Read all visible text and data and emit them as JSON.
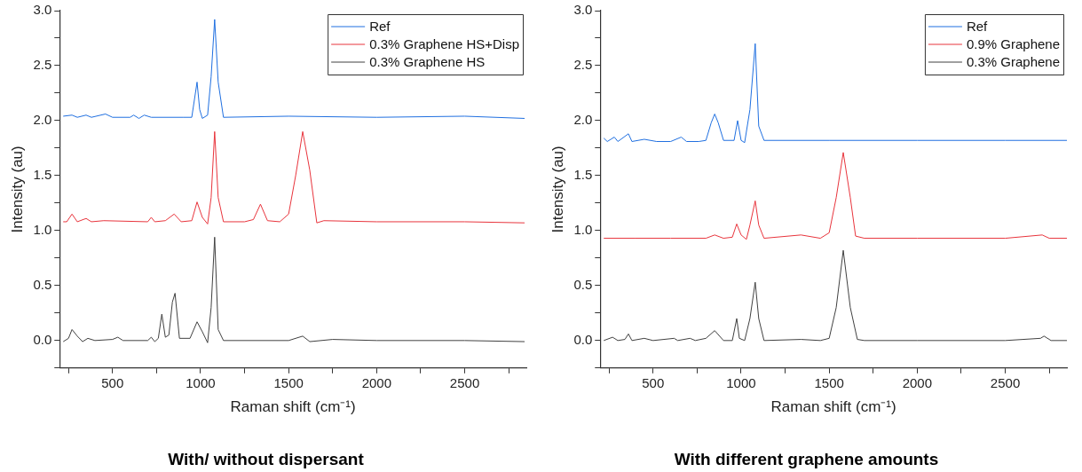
{
  "chart_data": [
    {
      "type": "line",
      "title": "With/ without dispersant",
      "xlabel": "Raman shift (cm⁻¹)",
      "ylabel": "Intensity (au)",
      "xlim": [
        200,
        2850
      ],
      "ylim": [
        -0.25,
        3.0
      ],
      "xticks": [
        {
          "value": 250,
          "label": null
        },
        500,
        {
          "value": 750,
          "label": null
        },
        1000,
        {
          "value": 1250,
          "label": null
        },
        1500,
        {
          "value": 1750,
          "label": null
        },
        2000,
        {
          "value": 2250,
          "label": null
        },
        2500,
        {
          "value": 2750,
          "label": null
        }
      ],
      "yticks": [
        {
          "value": -0.25,
          "label": null
        },
        {
          "value": 0,
          "label": "0.0"
        },
        {
          "value": 0.25,
          "label": null
        },
        0.5,
        {
          "value": 0.75,
          "label": null
        },
        {
          "value": 1,
          "label": "1.0"
        },
        {
          "value": 1.25,
          "label": null
        },
        1.5,
        {
          "value": 1.75,
          "label": null
        },
        {
          "value": 2,
          "label": "2.0"
        },
        {
          "value": 2.25,
          "label": null
        },
        2.5,
        {
          "value": 2.75,
          "label": null
        },
        {
          "value": 3,
          "label": "3.0"
        }
      ],
      "grid": false,
      "legend": "top right",
      "marker": "none",
      "line_style": "solid",
      "series": [
        {
          "name": "Ref",
          "color": "#1f6fe0",
          "x": [
            220,
            270,
            300,
            350,
            380,
            460,
            500,
            600,
            620,
            650,
            680,
            720,
            900,
            950,
            980,
            995,
            1010,
            1040,
            1060,
            1080,
            1100,
            1130,
            1500,
            2000,
            2500,
            2840
          ],
          "values": [
            2.04,
            2.05,
            2.03,
            2.05,
            2.03,
            2.06,
            2.03,
            2.03,
            2.05,
            2.02,
            2.05,
            2.03,
            2.03,
            2.03,
            2.35,
            2.1,
            2.02,
            2.05,
            2.4,
            2.92,
            2.35,
            2.03,
            2.04,
            2.03,
            2.04,
            2.02
          ]
        },
        {
          "name": "0.3% Graphene HS+Disp",
          "color": "#e8343c",
          "x": [
            220,
            240,
            270,
            300,
            350,
            380,
            450,
            700,
            720,
            740,
            800,
            850,
            890,
            950,
            980,
            1010,
            1040,
            1060,
            1080,
            1100,
            1130,
            1250,
            1300,
            1340,
            1380,
            1450,
            1500,
            1540,
            1580,
            1620,
            1660,
            1700,
            2000,
            2500,
            2840
          ],
          "values": [
            1.08,
            1.08,
            1.15,
            1.08,
            1.11,
            1.08,
            1.09,
            1.08,
            1.12,
            1.08,
            1.09,
            1.15,
            1.08,
            1.09,
            1.26,
            1.12,
            1.06,
            1.3,
            1.9,
            1.3,
            1.08,
            1.08,
            1.1,
            1.24,
            1.09,
            1.08,
            1.15,
            1.5,
            1.9,
            1.55,
            1.07,
            1.09,
            1.08,
            1.08,
            1.07
          ]
        },
        {
          "name": "0.3% Graphene HS",
          "color": "#404040",
          "x": [
            220,
            250,
            270,
            300,
            330,
            360,
            400,
            500,
            530,
            560,
            700,
            720,
            740,
            760,
            780,
            800,
            820,
            840,
            855,
            880,
            940,
            980,
            1010,
            1040,
            1060,
            1080,
            1100,
            1130,
            1500,
            1580,
            1620,
            1750,
            2000,
            2500,
            2840
          ],
          "values": [
            -0.01,
            0.02,
            0.1,
            0.04,
            -0.01,
            0.02,
            0,
            0.01,
            0.03,
            0,
            0,
            0.03,
            -0.01,
            0.02,
            0.24,
            0.03,
            0.05,
            0.35,
            0.43,
            0.02,
            0.02,
            0.17,
            0.08,
            -0.02,
            0.3,
            0.94,
            0.1,
            0,
            0,
            0.04,
            -0.01,
            0.01,
            0,
            0,
            -0.01
          ]
        }
      ]
    },
    {
      "type": "line",
      "title": "With different graphene amounts",
      "xlabel": "Raman shift (cm⁻¹)",
      "ylabel": "Intensity (au)",
      "xlim": [
        200,
        2850
      ],
      "ylim": [
        -0.25,
        3.0
      ],
      "xticks": [
        {
          "value": 250,
          "label": null
        },
        500,
        {
          "value": 750,
          "label": null
        },
        1000,
        {
          "value": 1250,
          "label": null
        },
        1500,
        {
          "value": 1750,
          "label": null
        },
        2000,
        {
          "value": 2250,
          "label": null
        },
        2500,
        {
          "value": 2750,
          "label": null
        }
      ],
      "yticks": [
        {
          "value": -0.25,
          "label": null
        },
        {
          "value": 0,
          "label": "0.0"
        },
        {
          "value": 0.25,
          "label": null
        },
        0.5,
        {
          "value": 0.75,
          "label": null
        },
        {
          "value": 1,
          "label": "1.0"
        },
        {
          "value": 1.25,
          "label": null
        },
        1.5,
        {
          "value": 1.75,
          "label": null
        },
        {
          "value": 2,
          "label": "2.0"
        },
        {
          "value": 2.25,
          "label": null
        },
        2.5,
        {
          "value": 2.75,
          "label": null
        },
        {
          "value": 3,
          "label": "3.0"
        }
      ],
      "grid": false,
      "legend": "top right",
      "marker": "none",
      "line_style": "solid",
      "series": [
        {
          "name": "Ref",
          "color": "#1f6fe0",
          "x": [
            220,
            240,
            280,
            300,
            360,
            380,
            450,
            520,
            600,
            660,
            690,
            760,
            800,
            830,
            850,
            870,
            900,
            960,
            980,
            1000,
            1020,
            1050,
            1080,
            1100,
            1130,
            1500,
            2000,
            2500,
            2850
          ],
          "values": [
            1.84,
            1.81,
            1.85,
            1.81,
            1.88,
            1.81,
            1.83,
            1.81,
            1.81,
            1.85,
            1.81,
            1.81,
            1.82,
            1.98,
            2.06,
            1.98,
            1.82,
            1.82,
            2.0,
            1.82,
            1.8,
            2.1,
            2.7,
            1.95,
            1.82,
            1.82,
            1.82,
            1.82,
            1.82
          ]
        },
        {
          "name": "0.9% Graphene",
          "color": "#e8343c",
          "x": [
            220,
            400,
            600,
            800,
            850,
            900,
            950,
            975,
            1000,
            1030,
            1050,
            1080,
            1100,
            1130,
            1340,
            1450,
            1500,
            1540,
            1580,
            1620,
            1650,
            1700,
            2000,
            2500,
            2710,
            2750,
            2850
          ],
          "values": [
            0.93,
            0.93,
            0.93,
            0.93,
            0.96,
            0.93,
            0.94,
            1.06,
            0.96,
            0.92,
            1.05,
            1.27,
            1.05,
            0.93,
            0.96,
            0.93,
            0.98,
            1.3,
            1.71,
            1.3,
            0.95,
            0.93,
            0.93,
            0.93,
            0.96,
            0.93,
            0.93
          ]
        },
        {
          "name": "0.3% Graphene",
          "color": "#404040",
          "x": [
            220,
            270,
            300,
            340,
            360,
            380,
            450,
            500,
            620,
            640,
            710,
            740,
            800,
            850,
            900,
            950,
            975,
            990,
            1020,
            1050,
            1080,
            1100,
            1130,
            1340,
            1450,
            1500,
            1540,
            1580,
            1620,
            1660,
            1700,
            2000,
            2500,
            2700,
            2720,
            2760,
            2850
          ],
          "values": [
            0,
            0.03,
            0,
            0.01,
            0.06,
            0,
            0.02,
            0,
            0.02,
            0,
            0.02,
            0,
            0.02,
            0.09,
            0,
            0,
            0.2,
            0.02,
            0,
            0.2,
            0.53,
            0.2,
            0,
            0.01,
            0,
            0.02,
            0.3,
            0.82,
            0.3,
            0.01,
            0,
            0,
            0,
            0.02,
            0.04,
            0,
            0
          ]
        }
      ]
    }
  ]
}
